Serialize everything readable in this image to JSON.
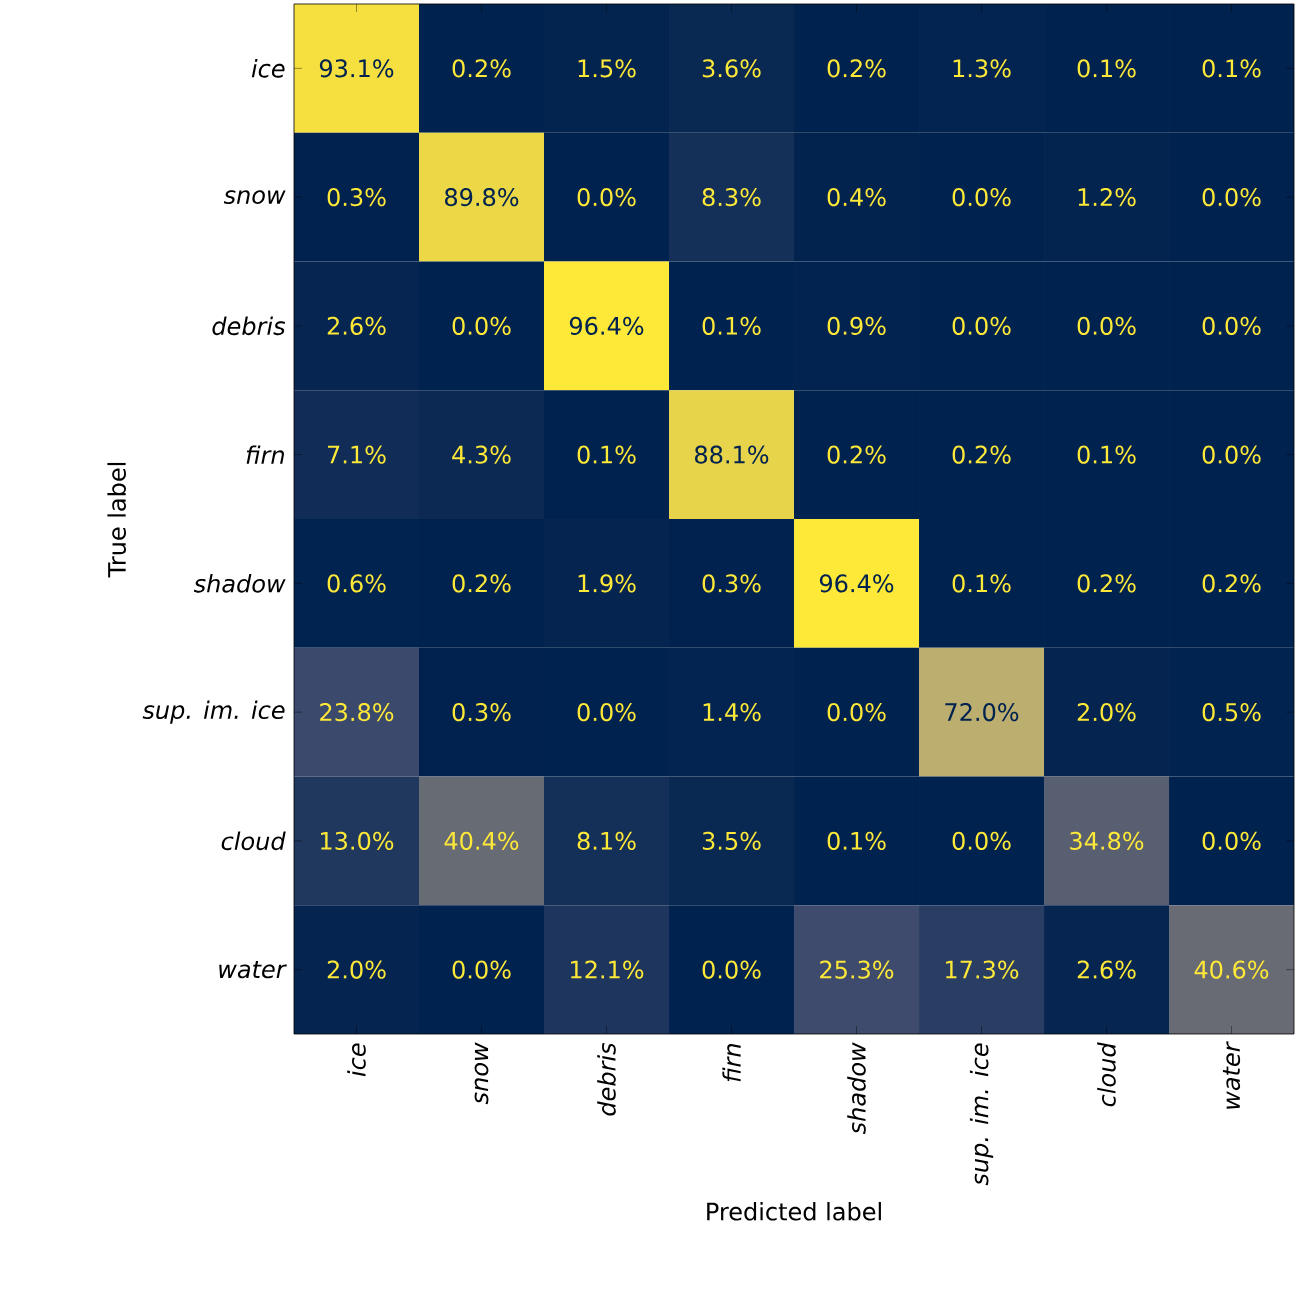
{
  "chart_data": {
    "type": "heatmap",
    "xlabel": "Predicted label",
    "ylabel": "True label",
    "categories": [
      "ice",
      "snow",
      "debris",
      "firn",
      "shadow",
      "sup. im. ice",
      "cloud",
      "water"
    ],
    "y_categories": [
      "ice",
      "snow",
      "debris",
      "firn",
      "shadow",
      "sup. im. ice",
      "cloud",
      "water"
    ],
    "cells": [
      [
        93.1,
        0.2,
        1.5,
        3.6,
        0.2,
        1.3,
        0.1,
        0.1
      ],
      [
        0.3,
        89.8,
        0.0,
        8.3,
        0.4,
        0.0,
        1.2,
        0.0
      ],
      [
        2.6,
        0.0,
        96.4,
        0.1,
        0.9,
        0.0,
        0.0,
        0.0
      ],
      [
        7.1,
        4.3,
        0.1,
        88.1,
        0.2,
        0.2,
        0.1,
        0.0
      ],
      [
        0.6,
        0.2,
        1.9,
        0.3,
        96.4,
        0.1,
        0.2,
        0.2
      ],
      [
        23.8,
        0.3,
        0.0,
        1.4,
        0.0,
        72.0,
        2.0,
        0.5
      ],
      [
        13.0,
        40.4,
        8.1,
        3.5,
        0.1,
        0.0,
        34.8,
        0.0
      ],
      [
        2.0,
        0.0,
        12.1,
        0.0,
        25.3,
        17.3,
        2.6,
        40.6
      ]
    ],
    "cell_labels": [
      [
        "93.1%",
        "0.2%",
        "1.5%",
        "3.6%",
        "0.2%",
        "1.3%",
        "0.1%",
        "0.1%"
      ],
      [
        "0.3%",
        "89.8%",
        "0.0%",
        "8.3%",
        "0.4%",
        "0.0%",
        "1.2%",
        "0.0%"
      ],
      [
        "2.6%",
        "0.0%",
        "96.4%",
        "0.1%",
        "0.9%",
        "0.0%",
        "0.0%",
        "0.0%"
      ],
      [
        "7.1%",
        "4.3%",
        "0.1%",
        "88.1%",
        "0.2%",
        "0.2%",
        "0.1%",
        "0.0%"
      ],
      [
        "0.6%",
        "0.2%",
        "1.9%",
        "0.3%",
        "96.4%",
        "0.1%",
        "0.2%",
        "0.2%"
      ],
      [
        "23.8%",
        "0.3%",
        "0.0%",
        "1.4%",
        "0.0%",
        "72.0%",
        "2.0%",
        "0.5%"
      ],
      [
        "13.0%",
        "40.4%",
        "8.1%",
        "3.5%",
        "0.1%",
        "0.0%",
        "34.8%",
        "0.0%"
      ],
      [
        "2.0%",
        "0.0%",
        "12.1%",
        "0.0%",
        "25.3%",
        "17.3%",
        "2.6%",
        "40.6%"
      ]
    ]
  }
}
